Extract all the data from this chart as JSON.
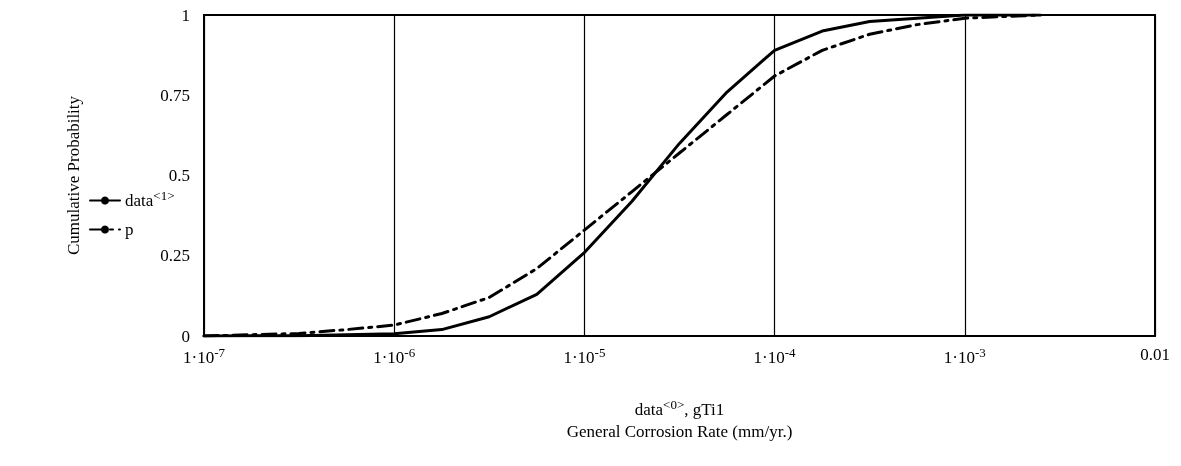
{
  "chart_data": {
    "type": "line",
    "ylabel": "Cumulative Probability",
    "xlabel": "data$^{<0>}$, gTi1\nGeneral Corrosion Rate (mm/yr.)",
    "log": "x",
    "grid": "x",
    "legend": "left",
    "marker": "none",
    "xlim": [
      1e-07,
      0.01
    ],
    "xticks": [
      {
        "value": 1e-07,
        "label": "1·10$^{-7}$"
      },
      {
        "value": 1e-06,
        "label": "1·10$^{-6}$"
      },
      {
        "value": 1e-05,
        "label": "1·10$^{-5}$"
      },
      {
        "value": 0.0001,
        "label": "1·10$^{-4}$"
      },
      {
        "value": 0.001,
        "label": "1·10$^{-3}$"
      },
      0.01
    ],
    "ylim": [
      0,
      1
    ],
    "yticks": [
      0,
      0.25,
      0.5,
      0.75,
      1
    ],
    "series": [
      {
        "name": "data$^{<1>}$",
        "color": "#000000",
        "line_style": "solid",
        "x": [
          1e-07,
          3.16e-07,
          1e-06,
          1.78e-06,
          3.16e-06,
          5.62e-06,
          1e-05,
          1.78e-05,
          3.16e-05,
          5.62e-05,
          0.0001,
          0.000178,
          0.000316,
          0.000562,
          0.001,
          0.0025
        ],
        "values": [
          0,
          0.001,
          0.007,
          0.02,
          0.06,
          0.13,
          0.26,
          0.42,
          0.6,
          0.76,
          0.89,
          0.95,
          0.98,
          0.99,
          1,
          1
        ]
      },
      {
        "name": "p",
        "color": "#000000",
        "line_style": "dashed",
        "x": [
          1e-07,
          3.16e-07,
          5.62e-07,
          1e-06,
          1.78e-06,
          3.16e-06,
          5.62e-06,
          1e-05,
          1.78e-05,
          3.16e-05,
          5.62e-05,
          0.0001,
          0.000178,
          0.000316,
          0.000562,
          0.001,
          0.0025
        ],
        "values": [
          0,
          0.008,
          0.02,
          0.034,
          0.07,
          0.12,
          0.21,
          0.33,
          0.45,
          0.57,
          0.69,
          0.81,
          0.89,
          0.94,
          0.97,
          0.99,
          1
        ]
      }
    ]
  }
}
